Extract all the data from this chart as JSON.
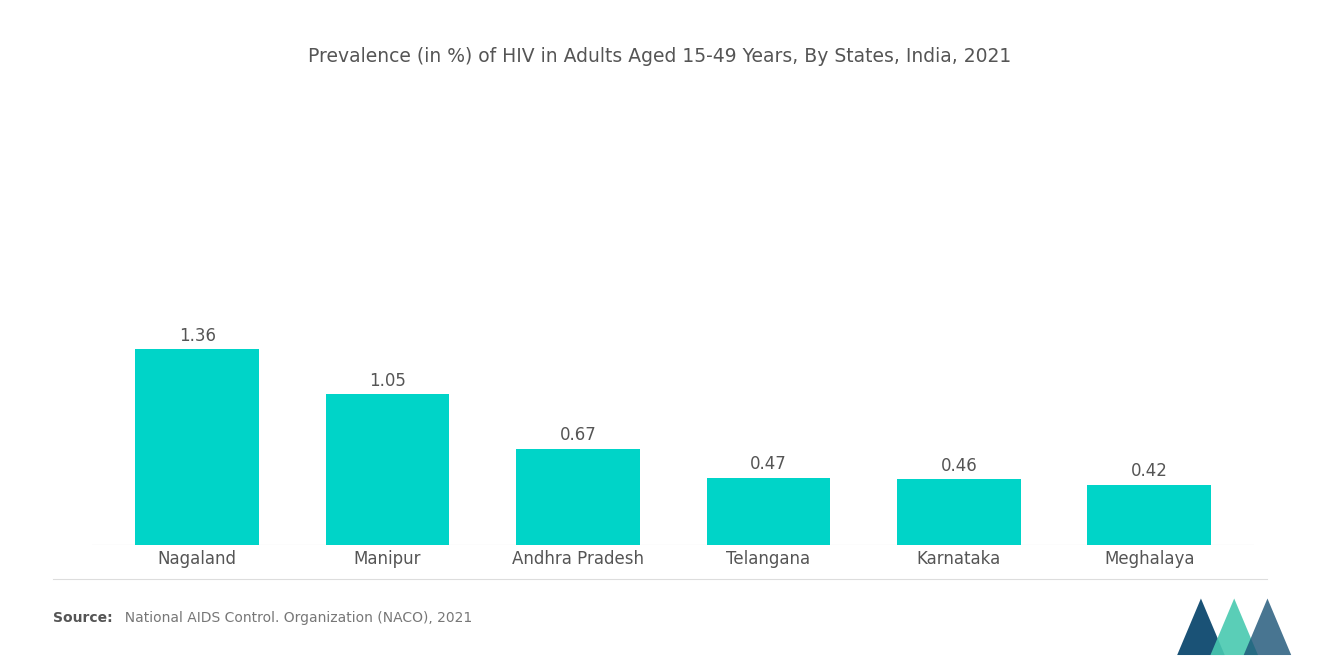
{
  "title": "Prevalence (in %) of HIV in Adults Aged 15-49 Years, By States, India, 2021",
  "categories": [
    "Nagaland",
    "Manipur",
    "Andhra Pradesh",
    "Telangana",
    "Karnataka",
    "Meghalaya"
  ],
  "values": [
    1.36,
    1.05,
    0.67,
    0.47,
    0.46,
    0.42
  ],
  "bar_color": "#00D4C8",
  "background_color": "#ffffff",
  "title_fontsize": 13.5,
  "label_fontsize": 12,
  "value_fontsize": 12,
  "source_bold": "Source:",
  "source_text": "  National AIDS Control. Organization (NACO), 2021",
  "source_fontsize": 10,
  "ylim": [
    0,
    2.4
  ],
  "bar_width": 0.65
}
